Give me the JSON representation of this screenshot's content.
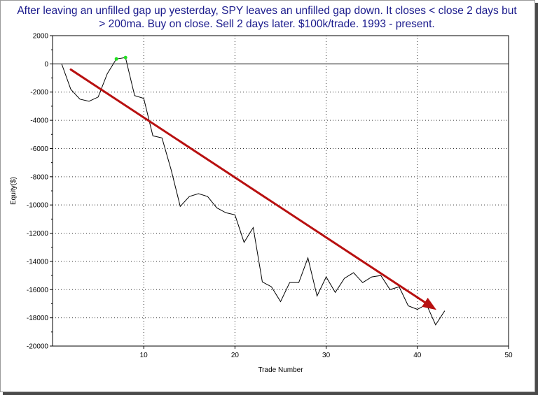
{
  "chart_data": {
    "type": "line",
    "title_lines": [
      "After leaving an unfilled gap up yesterday, SPY leaves an unfilled gap down. It closes < close 2 days but",
      "> 200ma. Buy on close. Sell 2 days later. $100k/trade. 1993 - present."
    ],
    "xlabel": "Trade Number",
    "ylabel": "Equity($)",
    "xlim": [
      0,
      50
    ],
    "ylim": [
      -20000,
      2000
    ],
    "x_ticks": [
      10,
      20,
      30,
      40,
      50
    ],
    "y_ticks": [
      2000,
      0,
      -2000,
      -4000,
      -6000,
      -8000,
      -10000,
      -12000,
      -14000,
      -16000,
      -18000,
      -20000
    ],
    "grid": true,
    "series": [
      {
        "color": "#000000",
        "x": [
          1,
          2,
          3,
          4,
          5,
          6,
          7,
          8,
          9,
          10,
          11,
          12,
          13,
          14,
          15,
          16,
          17,
          18,
          19,
          20,
          21,
          22,
          23,
          24,
          25,
          26,
          27,
          28,
          29,
          30,
          31,
          32,
          33,
          34,
          35,
          36,
          37,
          38,
          39,
          40,
          41,
          42,
          43
        ],
        "y": [
          0,
          -1800,
          -2500,
          -2650,
          -2350,
          -700,
          350,
          450,
          -2250,
          -2450,
          -5100,
          -5250,
          -7500,
          -10100,
          -9400,
          -9200,
          -9400,
          -10200,
          -10550,
          -10700,
          -12650,
          -11600,
          -15450,
          -15800,
          -16850,
          -15500,
          -15500,
          -13750,
          -16450,
          -15100,
          -16200,
          -15200,
          -14800,
          -15500,
          -15100,
          -15000,
          -16000,
          -15800,
          -17150,
          -17400,
          -17050,
          -18500,
          -17500
        ]
      }
    ],
    "highlight_points": {
      "color": "#22e022",
      "x": [
        7,
        8
      ],
      "y": [
        350,
        450
      ]
    },
    "trend_arrow": {
      "color": "#b81010",
      "from": [
        2,
        -400
      ],
      "to": [
        42,
        -17400
      ]
    }
  }
}
